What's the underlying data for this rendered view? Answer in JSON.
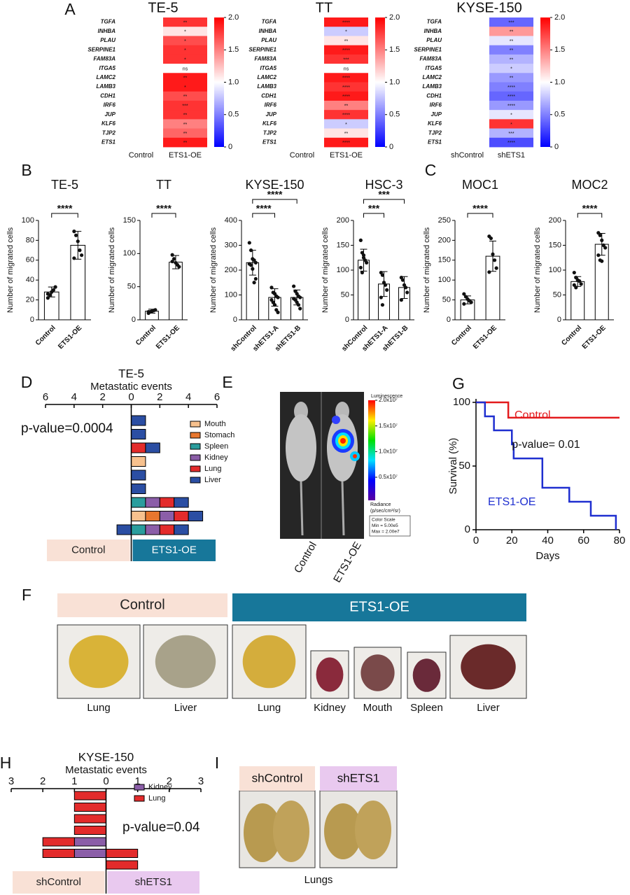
{
  "panel_labels": [
    "A",
    "B",
    "C",
    "D",
    "E",
    "F",
    "G",
    "H",
    "I"
  ],
  "chart_data": [
    {
      "type": "heatmap",
      "title": "TE-5",
      "rows": [
        "TGFA",
        "INHBA",
        "PLAU",
        "SERPINE1",
        "FAM83A",
        "ITGA5",
        "LAMC2",
        "LAMB3",
        "CDH1",
        "IRF6",
        "JUP",
        "KLF6",
        "TJP2",
        "ETS1"
      ],
      "columns": [
        "Control",
        "ETS1-OE"
      ],
      "values": [
        [
          1,
          1.8
        ],
        [
          1,
          1.1
        ],
        [
          1,
          1.7
        ],
        [
          1,
          1.8
        ],
        [
          1,
          1.8
        ],
        [
          1,
          1.0
        ],
        [
          1,
          1.9
        ],
        [
          1,
          1.9
        ],
        [
          1,
          1.7
        ],
        [
          1,
          1.8
        ],
        [
          1,
          1.8
        ],
        [
          1,
          1.5
        ],
        [
          1,
          1.6
        ],
        [
          1,
          1.9
        ]
      ],
      "annotations": [
        "**",
        "*",
        "*",
        "*",
        "*",
        "ns",
        "**",
        "*",
        "**",
        "***",
        "**",
        "**",
        "**",
        "**"
      ],
      "colormap": [
        "#0000ff",
        "#ffffff",
        "#ff0000"
      ],
      "clim": [
        0,
        2
      ],
      "cticks": [
        0,
        0.5,
        {
          "value": 1,
          "label": "1.0"
        },
        1.5,
        {
          "value": 2,
          "label": "2.0"
        }
      ]
    },
    {
      "type": "heatmap",
      "title": "TT",
      "rows": [
        "TGFA",
        "INHBA",
        "PLAU",
        "SERPINE1",
        "FAM83A",
        "ITGA5",
        "LAMC2",
        "LAMB3",
        "CDH1",
        "IRF6",
        "JUP",
        "KLF6",
        "TJP2",
        "ETS1"
      ],
      "columns": [
        "Control",
        "ETS1-OE"
      ],
      "values": [
        [
          1,
          1.9
        ],
        [
          1,
          0.8
        ],
        [
          1,
          1.1
        ],
        [
          1,
          1.9
        ],
        [
          1,
          1.8
        ],
        [
          1,
          1.0
        ],
        [
          1,
          1.9
        ],
        [
          1,
          1.8
        ],
        [
          1,
          1.9
        ],
        [
          1,
          1.5
        ],
        [
          1,
          1.8
        ],
        [
          1,
          0.8
        ],
        [
          1,
          1.1
        ],
        [
          1,
          1.9
        ]
      ],
      "annotations": [
        "****",
        "*",
        "**",
        "****",
        "***",
        "ns",
        "****",
        "****",
        "****",
        "**",
        "****",
        "*",
        "**",
        "****"
      ],
      "colormap": [
        "#0000ff",
        "#ffffff",
        "#ff0000"
      ],
      "clim": [
        0,
        2
      ],
      "cticks": [
        0,
        0.5,
        {
          "value": 1,
          "label": "1.0"
        },
        1.5,
        {
          "value": 2,
          "label": "2.0"
        }
      ]
    },
    {
      "type": "heatmap",
      "title": "KYSE-150",
      "rows": [
        "TGFA",
        "INHBA",
        "PLAU",
        "SERPINE1",
        "FAM83A",
        "ITGA5",
        "LAMC2",
        "LAMB3",
        "CDH1",
        "IRF6",
        "JUP",
        "KLF6",
        "TJP2",
        "ETS1"
      ],
      "columns": [
        "shControl",
        "shETS1"
      ],
      "values": [
        [
          1,
          0.4
        ],
        [
          1,
          1.4
        ],
        [
          1,
          0.9
        ],
        [
          1,
          0.5
        ],
        [
          1,
          0.7
        ],
        [
          1,
          0.8
        ],
        [
          1,
          0.6
        ],
        [
          1,
          0.5
        ],
        [
          1,
          0.4
        ],
        [
          1,
          0.6
        ],
        [
          1,
          0.9
        ],
        [
          1,
          1.8
        ],
        [
          1,
          0.7
        ],
        [
          1,
          0.3
        ]
      ],
      "annotations": [
        "***",
        "**",
        "**",
        "**",
        "**",
        "*",
        "**",
        "****",
        "****",
        "****",
        "*",
        "*",
        "***",
        "****"
      ],
      "colormap": [
        "#0000ff",
        "#ffffff",
        "#ff0000"
      ],
      "clim": [
        0,
        2
      ],
      "cticks": [
        0,
        0.5,
        {
          "value": 1,
          "label": "1.0"
        },
        1.5,
        {
          "value": 2,
          "label": "2.0"
        }
      ]
    },
    {
      "type": "bar",
      "title": "TE-5",
      "ylabel": "Number of migrated cells",
      "color": "#ffffff",
      "categories": [
        "Control",
        "ETS1-OE"
      ],
      "values": [
        28,
        75
      ],
      "errors": [
        5,
        14
      ],
      "points": [
        [
          22,
          25,
          28,
          30,
          33,
          26
        ],
        [
          89,
          85,
          79,
          70,
          65,
          62
        ]
      ],
      "ylim": [
        0,
        100
      ],
      "yticks": [
        0,
        20,
        40,
        60,
        80,
        100
      ],
      "significance": [
        {
          "pair": [
            "Control",
            "ETS1-OE"
          ],
          "label": "****"
        }
      ]
    },
    {
      "type": "bar",
      "title": "TT",
      "ylabel": "Number of migrated cells",
      "color": "#ffffff",
      "categories": [
        "Control",
        "ETS1-OE"
      ],
      "values": [
        13,
        87
      ],
      "errors": [
        3,
        10
      ],
      "points": [
        [
          10,
          12,
          13,
          14,
          15,
          12
        ],
        [
          98,
          92,
          86,
          83,
          80,
          88
        ]
      ],
      "ylim": [
        0,
        150
      ],
      "yticks": [
        0,
        50,
        100,
        150
      ],
      "significance": [
        {
          "pair": [
            "Control",
            "ETS1-OE"
          ],
          "label": "****"
        }
      ]
    },
    {
      "type": "bar",
      "title": "KYSE-150",
      "ylabel": "Number of migrated cells",
      "color": "#ffffff",
      "categories": [
        "shControl",
        "shETS1-A",
        "shETS1-B"
      ],
      "values": [
        230,
        90,
        90
      ],
      "errors": [
        50,
        35,
        30
      ],
      "points": [
        [
          310,
          280,
          245,
          240,
          230,
          225,
          220,
          205,
          150,
          165
        ],
        [
          130,
          110,
          105,
          95,
          90,
          80,
          70,
          60,
          40,
          30
        ],
        [
          135,
          115,
          105,
          95,
          90,
          85,
          80,
          70,
          60,
          45
        ]
      ],
      "ylim": [
        0,
        400
      ],
      "yticks": [
        0,
        100,
        200,
        300,
        400
      ],
      "significance": [
        {
          "pair": [
            "shControl",
            "shETS1-A"
          ],
          "label": "****"
        },
        {
          "pair": [
            "shControl",
            "shETS1-B"
          ],
          "label": "****"
        }
      ]
    },
    {
      "type": "bar",
      "title": "HSC-3",
      "ylabel": "Number of migrated cells",
      "color": "#ffffff",
      "categories": [
        "shControl",
        "shETS1-A",
        "shETS1-B"
      ],
      "values": [
        120,
        72,
        65
      ],
      "errors": [
        22,
        25,
        22
      ],
      "points": [
        [
          160,
          135,
          125,
          120,
          115,
          105,
          95,
          130
        ],
        [
          95,
          90,
          75,
          70,
          60,
          45,
          30
        ],
        [
          85,
          80,
          70,
          65,
          55,
          40
        ]
      ],
      "ylim": [
        0,
        200
      ],
      "yticks": [
        0,
        50,
        100,
        150,
        200
      ],
      "significance": [
        {
          "pair": [
            "shControl",
            "shETS1-A"
          ],
          "label": "***"
        },
        {
          "pair": [
            "shControl",
            "shETS1-B"
          ],
          "label": "***"
        }
      ]
    },
    {
      "type": "bar",
      "title": "MOC1",
      "ylabel": "Number of migrated cells",
      "color": "#ffffff",
      "categories": [
        "Control",
        "ETS1-OE"
      ],
      "values": [
        50,
        160
      ],
      "errors": [
        10,
        38
      ],
      "points": [
        [
          65,
          58,
          52,
          48,
          44,
          40
        ],
        [
          210,
          205,
          165,
          150,
          130,
          120
        ]
      ],
      "ylim": [
        0,
        250
      ],
      "yticks": [
        0,
        50,
        100,
        150,
        200,
        250
      ],
      "significance": [
        {
          "pair": [
            "Control",
            "ETS1-OE"
          ],
          "label": "****"
        }
      ]
    },
    {
      "type": "bar",
      "title": "MOC2",
      "ylabel": "Number of migrated cells",
      "color": "#ffffff",
      "categories": [
        "Control",
        "ETS1-OE"
      ],
      "values": [
        77,
        152
      ],
      "errors": [
        10,
        22
      ],
      "points": [
        [
          95,
          85,
          80,
          78,
          72,
          70,
          65
        ],
        [
          175,
          170,
          160,
          150,
          145,
          130,
          120,
          118
        ]
      ],
      "ylim": [
        0,
        200
      ],
      "yticks": [
        0,
        50,
        100,
        150,
        200
      ],
      "significance": [
        {
          "pair": [
            "Control",
            "ETS1-OE"
          ],
          "label": "****"
        }
      ]
    },
    {
      "type": "diverging_bar",
      "title": "TE-5",
      "xlabel": "Metastatic events",
      "xlim": [
        -6,
        6
      ],
      "xticks": [
        {
          "value": -6,
          "label": "6"
        },
        {
          "value": -4,
          "label": "4"
        },
        {
          "value": -2,
          "label": "2"
        },
        0,
        2,
        4,
        6
      ],
      "series": [
        {
          "name": "Mouth",
          "color": "#f7c18e",
          "values": [
            null,
            null,
            null,
            1,
            null,
            null,
            null,
            1,
            null
          ]
        },
        {
          "name": "Stomach",
          "color": "#e8772e",
          "values": [
            null,
            null,
            null,
            null,
            null,
            null,
            null,
            1,
            null
          ]
        },
        {
          "name": "Spleen",
          "color": "#2a9d9d",
          "values": [
            null,
            null,
            null,
            null,
            null,
            null,
            1,
            null,
            1
          ]
        },
        {
          "name": "Kidney",
          "color": "#8b5ea8",
          "values": [
            null,
            null,
            null,
            null,
            null,
            null,
            1,
            1,
            1
          ]
        },
        {
          "name": "Lung",
          "color": "#e32b2b",
          "values": [
            null,
            null,
            1,
            null,
            null,
            null,
            1,
            1,
            1
          ]
        },
        {
          "name": "Liver",
          "color": "#2b4ea3",
          "values": [
            1,
            1,
            1,
            null,
            1,
            1,
            1,
            1,
            1
          ],
          "left_values": [
            null,
            null,
            null,
            null,
            null,
            null,
            null,
            null,
            -1
          ]
        }
      ],
      "groups": [
        "Control",
        "ETS1-OE"
      ],
      "group_colors": [
        "#f9e1d6",
        "#17779a"
      ],
      "group_text_colors": [
        "#222222",
        "#ffffff"
      ],
      "annotation": "p-value=0.0004"
    },
    {
      "type": "line",
      "xlabel": "Days",
      "ylabel": "Survival (%)",
      "xlim": [
        0,
        80
      ],
      "xticks": [
        0,
        20,
        40,
        60,
        80
      ],
      "ylim": [
        0,
        100
      ],
      "yticks": [
        0,
        50,
        100
      ],
      "series": [
        {
          "name": "Control",
          "color": "#e31a1c",
          "x": [
            0,
            18,
            18,
            80
          ],
          "values": [
            100,
            100,
            88,
            88
          ]
        },
        {
          "name": "ETS1-OE",
          "color": "#1f2fd0",
          "x": [
            0,
            5,
            5,
            10,
            10,
            20,
            20,
            21,
            21,
            37,
            37,
            52,
            52,
            64,
            64,
            78,
            78
          ],
          "values": [
            100,
            100,
            89,
            89,
            78,
            78,
            67,
            67,
            56,
            56,
            33,
            33,
            22,
            22,
            11,
            11,
            0
          ]
        }
      ],
      "annotation": "p-value= 0.01"
    },
    {
      "type": "diverging_bar",
      "title": "KYSE-150",
      "xlabel": "Metastatic events",
      "xlim": [
        -3,
        3
      ],
      "xticks": [
        {
          "value": -3,
          "label": "3"
        },
        {
          "value": -2,
          "label": "2"
        },
        {
          "value": -1,
          "label": "1"
        },
        0,
        1,
        2,
        3
      ],
      "series": [
        {
          "name": "Kidney",
          "color": "#8b5ea8",
          "values": [
            null,
            null,
            null,
            null,
            null,
            null,
            null
          ],
          "left_values": [
            null,
            null,
            null,
            null,
            -1,
            -1,
            null
          ]
        },
        {
          "name": "Lung",
          "color": "#e32b2b",
          "values": [
            null,
            null,
            null,
            null,
            null,
            1,
            1
          ],
          "left_values": [
            -1,
            -1,
            -1,
            -1,
            -1,
            -1,
            null
          ]
        }
      ],
      "groups": [
        "shControl",
        "shETS1"
      ],
      "group_colors": [
        "#f9e1d6",
        "#e9c9ef"
      ],
      "group_text_colors": [
        "#222222",
        "#222222"
      ],
      "annotation": "p-value=0.04"
    }
  ],
  "imaging": {
    "labels": [
      "Control",
      "ETS1-OE"
    ],
    "colorbar": {
      "title": "Luminescence",
      "lim": [
        500000,
        20000000
      ],
      "ticks": [
        {
          "value": 20000000,
          "label": "2.0x10⁷"
        },
        {
          "value": 15000000,
          "label": "1.5x10⁷"
        },
        {
          "value": 10000000,
          "label": "1.0x10⁷"
        },
        {
          "value": 5000000,
          "label": "0.5x10⁷"
        }
      ]
    },
    "unit": [
      "Radiance",
      "(p/sec/cm²/sr)"
    ],
    "info": [
      "Color Scale",
      "Min = 5.00e5",
      "Max = 2.00e7"
    ]
  },
  "organ_photos": {
    "groups": [
      {
        "label": "Control",
        "items": [
          "Lung",
          "Liver"
        ]
      },
      {
        "label": "ETS1-OE",
        "items": [
          "Lung",
          "Kidney",
          "Mouth",
          "Spleen",
          "Liver"
        ]
      }
    ]
  },
  "lung_photos": {
    "groups": [
      "shControl",
      "shETS1"
    ],
    "caption": "Lungs"
  }
}
